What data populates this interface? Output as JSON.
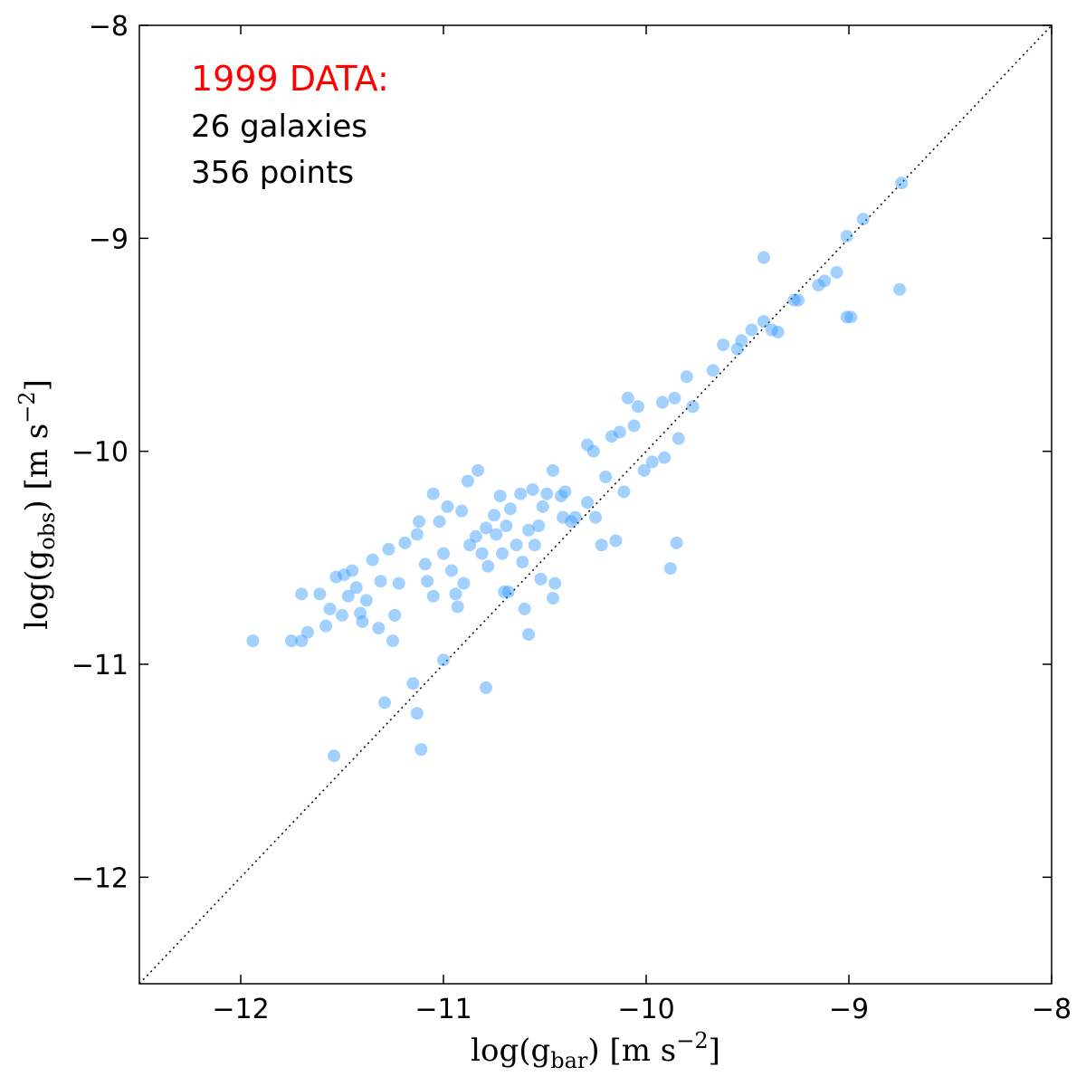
{
  "chart_data": {
    "type": "scatter",
    "annotations": [
      {
        "text": "1999 DATA:",
        "color": "#ff0000"
      },
      {
        "text": "26 galaxies",
        "color": "#000000"
      },
      {
        "text": "356 points",
        "color": "#000000"
      }
    ],
    "x_label": [
      "log(g",
      "bar",
      ") [m s",
      "−2",
      "]"
    ],
    "y_label": [
      "log(g",
      "obs",
      ") [m s",
      "−2",
      "]"
    ],
    "color": "#3399ff",
    "xlim": [
      -12.5,
      -8
    ],
    "ylim": [
      -12.5,
      -8
    ],
    "xticks": [
      {
        "value": -12,
        "label": "−12"
      },
      {
        "value": -11,
        "label": "−11"
      },
      {
        "value": -10,
        "label": "−10"
      },
      {
        "value": -9,
        "label": "−9"
      },
      {
        "value": -8,
        "label": "−8"
      }
    ],
    "yticks": [
      {
        "value": -12,
        "label": "−12"
      },
      {
        "value": -11,
        "label": "−11"
      },
      {
        "value": -10,
        "label": "−10"
      },
      {
        "value": -9,
        "label": "−9"
      },
      {
        "value": -8,
        "label": "−8"
      }
    ],
    "x": [
      -11.94,
      -11.75,
      -11.7,
      -11.67,
      -11.7,
      -11.61,
      -11.58,
      -11.56,
      -11.54,
      -11.53,
      -11.49,
      -11.5,
      -11.45,
      -11.47,
      -11.43,
      -11.41,
      -11.4,
      -11.38,
      -11.35,
      -11.32,
      -11.31,
      -11.29,
      -11.27,
      -11.25,
      -11.24,
      -11.22,
      -11.19,
      -11.15,
      -11.13,
      -11.13,
      -11.12,
      -11.11,
      -11.09,
      -11.08,
      -11.05,
      -11.05,
      -11.02,
      -11.0,
      -11.0,
      -10.98,
      -10.96,
      -10.94,
      -10.93,
      -10.91,
      -10.9,
      -10.88,
      -10.87,
      -10.84,
      -10.83,
      -10.81,
      -10.79,
      -10.79,
      -10.78,
      -10.75,
      -10.74,
      -10.72,
      -10.71,
      -10.7,
      -10.69,
      -10.68,
      -10.67,
      -10.64,
      -10.62,
      -10.61,
      -10.6,
      -10.58,
      -10.58,
      -10.56,
      -10.55,
      -10.53,
      -10.52,
      -10.51,
      -10.49,
      -10.46,
      -10.46,
      -10.45,
      -10.42,
      -10.41,
      -10.4,
      -10.37,
      -10.35,
      -10.29,
      -10.29,
      -10.26,
      -10.25,
      -10.22,
      -10.2,
      -10.17,
      -10.15,
      -10.13,
      -10.11,
      -10.09,
      -10.06,
      -10.04,
      -10.01,
      -9.97,
      -9.92,
      -9.91,
      -9.88,
      -9.86,
      -9.85,
      -9.84,
      -9.8,
      -9.77,
      -9.67,
      -9.62,
      -9.55,
      -9.53,
      -9.48,
      -9.42,
      -9.42,
      -9.38,
      -9.35,
      -9.27,
      -9.25,
      -9.15,
      -9.12,
      -9.06,
      -9.01,
      -9.01,
      -8.99,
      -8.93,
      -8.75,
      -8.74
    ],
    "values": [
      -10.89,
      -10.89,
      -10.89,
      -10.85,
      -10.67,
      -10.67,
      -10.82,
      -10.74,
      -11.43,
      -10.59,
      -10.58,
      -10.77,
      -10.56,
      -10.68,
      -10.64,
      -10.76,
      -10.8,
      -10.7,
      -10.51,
      -10.83,
      -10.61,
      -11.18,
      -10.46,
      -10.89,
      -10.77,
      -10.62,
      -10.43,
      -11.09,
      -10.39,
      -11.23,
      -10.33,
      -11.4,
      -10.53,
      -10.61,
      -10.68,
      -10.2,
      -10.33,
      -10.48,
      -10.98,
      -10.26,
      -10.56,
      -10.67,
      -10.73,
      -10.28,
      -10.62,
      -10.14,
      -10.44,
      -10.4,
      -10.09,
      -10.48,
      -10.36,
      -11.11,
      -10.54,
      -10.3,
      -10.39,
      -10.21,
      -10.48,
      -10.66,
      -10.35,
      -10.66,
      -10.27,
      -10.44,
      -10.2,
      -10.52,
      -10.74,
      -10.86,
      -10.37,
      -10.18,
      -10.44,
      -10.35,
      -10.6,
      -10.26,
      -10.2,
      -10.09,
      -10.69,
      -10.62,
      -10.21,
      -10.31,
      -10.19,
      -10.33,
      -10.31,
      -9.97,
      -10.24,
      -10.0,
      -10.31,
      -10.44,
      -10.12,
      -9.93,
      -10.42,
      -9.91,
      -10.19,
      -9.75,
      -9.88,
      -9.79,
      -10.09,
      -10.05,
      -9.77,
      -10.03,
      -10.55,
      -9.75,
      -10.43,
      -9.94,
      -9.65,
      -9.79,
      -9.62,
      -9.5,
      -9.52,
      -9.48,
      -9.43,
      -9.39,
      -9.09,
      -9.43,
      -9.44,
      -9.29,
      -9.29,
      -9.22,
      -9.2,
      -9.16,
      -9.37,
      -8.99,
      -9.37,
      -8.91,
      -9.24,
      -8.74
    ]
  }
}
